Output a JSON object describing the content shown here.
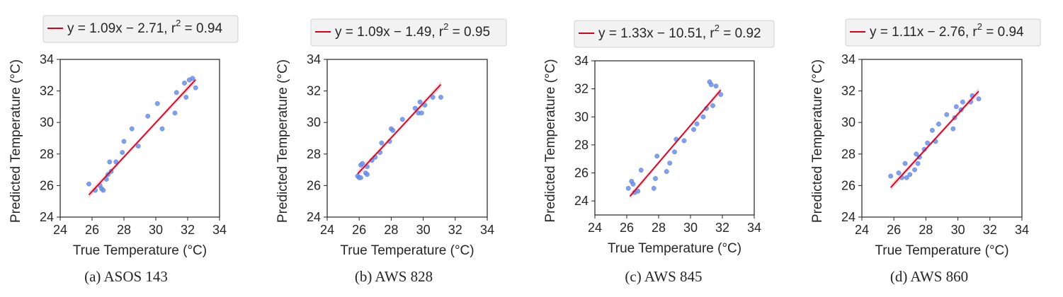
{
  "chart_data": [
    {
      "type": "scatter",
      "caption": "(a) ASOS 143",
      "legend": "y = 1.09x − 2.71, r = 0.94",
      "legend_superscript": "2",
      "xlabel": "True Temperature (°C)",
      "ylabel": "Predicted Temperature (°C)",
      "xlim": [
        24,
        34
      ],
      "ylim": [
        24,
        34
      ],
      "xticks": [
        "24",
        "26",
        "28",
        "30",
        "32",
        "34"
      ],
      "yticks": [
        "24",
        "26",
        "28",
        "30",
        "32",
        "34"
      ],
      "grid": false,
      "legend_position": "above",
      "fit": {
        "slope": 1.09,
        "intercept": -2.71,
        "x_range": [
          25.8,
          32.5
        ]
      },
      "points": [
        [
          25.8,
          26.1
        ],
        [
          26.2,
          25.7
        ],
        [
          26.5,
          26.0
        ],
        [
          26.6,
          25.8
        ],
        [
          26.7,
          25.7
        ],
        [
          26.9,
          26.4
        ],
        [
          27.0,
          26.7
        ],
        [
          27.1,
          27.5
        ],
        [
          27.2,
          26.9
        ],
        [
          27.5,
          27.5
        ],
        [
          27.9,
          28.1
        ],
        [
          28.0,
          28.8
        ],
        [
          28.5,
          29.6
        ],
        [
          28.9,
          28.5
        ],
        [
          29.5,
          30.4
        ],
        [
          30.1,
          31.2
        ],
        [
          30.4,
          29.6
        ],
        [
          31.2,
          30.6
        ],
        [
          31.3,
          31.9
        ],
        [
          31.8,
          32.5
        ],
        [
          31.9,
          31.6
        ],
        [
          32.1,
          32.7
        ],
        [
          32.3,
          32.8
        ],
        [
          32.5,
          32.2
        ]
      ],
      "colors": {
        "fit": "#d6001c",
        "band": "#f4b6c4",
        "points": "#6b8fe8"
      }
    },
    {
      "type": "scatter",
      "caption": "(b) AWS 828",
      "legend": "y = 1.09x − 1.49, r = 0.95",
      "legend_superscript": "2",
      "xlabel": "True Temperature (°C)",
      "ylabel": "Predicted Temperature (°C)",
      "xlim": [
        24,
        34
      ],
      "ylim": [
        24,
        34
      ],
      "xticks": [
        "24",
        "26",
        "28",
        "30",
        "32",
        "34"
      ],
      "yticks": [
        "24",
        "26",
        "28",
        "30",
        "32",
        "34"
      ],
      "grid": false,
      "legend_position": "above",
      "fit": {
        "slope": 1.09,
        "intercept": -1.49,
        "x_range": [
          25.9,
          31.1
        ]
      },
      "points": [
        [
          25.9,
          26.6
        ],
        [
          26.0,
          26.5
        ],
        [
          26.1,
          26.5
        ],
        [
          26.1,
          27.3
        ],
        [
          26.2,
          27.4
        ],
        [
          26.4,
          26.8
        ],
        [
          26.5,
          26.7
        ],
        [
          26.5,
          27.2
        ],
        [
          26.8,
          27.6
        ],
        [
          27.0,
          27.8
        ],
        [
          27.3,
          28.1
        ],
        [
          27.4,
          28.7
        ],
        [
          27.9,
          28.8
        ],
        [
          28.0,
          29.6
        ],
        [
          28.1,
          29.5
        ],
        [
          28.7,
          30.2
        ],
        [
          29.5,
          30.9
        ],
        [
          29.7,
          30.6
        ],
        [
          29.8,
          31.3
        ],
        [
          29.9,
          30.6
        ],
        [
          30.1,
          31.1
        ],
        [
          30.6,
          31.6
        ],
        [
          31.1,
          31.6
        ]
      ],
      "colors": {
        "fit": "#d6001c",
        "band": "#f4b6c4",
        "points": "#6b8fe8"
      }
    },
    {
      "type": "scatter",
      "caption": "(c) AWS 845",
      "legend": "y = 1.33x − 10.51, r = 0.92",
      "legend_superscript": "2",
      "xlabel": "True Temperature (°C)",
      "ylabel": "Predicted Temperature (°C)",
      "xlim": [
        24,
        34
      ],
      "ylim": [
        23,
        34
      ],
      "xticks": [
        "24",
        "26",
        "28",
        "30",
        "32",
        "34"
      ],
      "yticks": [
        "24",
        "26",
        "28",
        "30",
        "32",
        "34"
      ],
      "grid": false,
      "legend_position": "above",
      "fit": {
        "slope": 1.33,
        "intercept": -10.51,
        "x_range": [
          26.2,
          31.9
        ]
      },
      "points": [
        [
          26.1,
          24.9
        ],
        [
          26.3,
          25.4
        ],
        [
          26.4,
          25.2
        ],
        [
          26.5,
          24.6
        ],
        [
          26.7,
          24.7
        ],
        [
          26.9,
          26.2
        ],
        [
          27.7,
          24.9
        ],
        [
          27.8,
          25.6
        ],
        [
          27.9,
          27.2
        ],
        [
          28.5,
          26.1
        ],
        [
          28.7,
          26.7
        ],
        [
          29.0,
          27.5
        ],
        [
          29.1,
          28.4
        ],
        [
          29.6,
          28.3
        ],
        [
          30.2,
          29.1
        ],
        [
          30.4,
          29.5
        ],
        [
          30.8,
          30.0
        ],
        [
          31.0,
          30.6
        ],
        [
          31.2,
          32.5
        ],
        [
          31.3,
          32.3
        ],
        [
          31.4,
          30.8
        ],
        [
          31.6,
          32.2
        ],
        [
          31.9,
          31.6
        ]
      ],
      "colors": {
        "fit": "#d6001c",
        "band": "#f4b6c4",
        "points": "#6b8fe8"
      }
    },
    {
      "type": "scatter",
      "caption": "(d) AWS 860",
      "legend": "y = 1.11x − 2.76, r = 0.94",
      "legend_superscript": "2",
      "xlabel": "True Temperature (°C)",
      "ylabel": "Predicted Temperature (°C)",
      "xlim": [
        24,
        34
      ],
      "ylim": [
        24,
        34
      ],
      "xticks": [
        "24",
        "26",
        "28",
        "30",
        "32",
        "34"
      ],
      "yticks": [
        "24",
        "26",
        "28",
        "30",
        "32",
        "34"
      ],
      "grid": false,
      "legend_position": "above",
      "fit": {
        "slope": 1.11,
        "intercept": -2.76,
        "x_range": [
          25.8,
          31.3
        ]
      },
      "points": [
        [
          25.8,
          26.6
        ],
        [
          26.3,
          26.8
        ],
        [
          26.5,
          26.5
        ],
        [
          26.7,
          27.4
        ],
        [
          26.8,
          26.5
        ],
        [
          27.0,
          26.7
        ],
        [
          27.3,
          27.0
        ],
        [
          27.4,
          28.0
        ],
        [
          27.5,
          27.4
        ],
        [
          27.6,
          27.8
        ],
        [
          27.9,
          28.3
        ],
        [
          28.1,
          28.7
        ],
        [
          28.4,
          29.5
        ],
        [
          28.6,
          28.8
        ],
        [
          28.8,
          29.9
        ],
        [
          29.3,
          30.5
        ],
        [
          29.7,
          29.6
        ],
        [
          29.8,
          30.3
        ],
        [
          29.9,
          31.0
        ],
        [
          30.2,
          30.8
        ],
        [
          30.3,
          31.3
        ],
        [
          30.8,
          31.3
        ],
        [
          30.9,
          31.7
        ],
        [
          31.3,
          31.5
        ]
      ],
      "colors": {
        "fit": "#d6001c",
        "band": "#f4b6c4",
        "points": "#6b8fe8"
      }
    }
  ]
}
